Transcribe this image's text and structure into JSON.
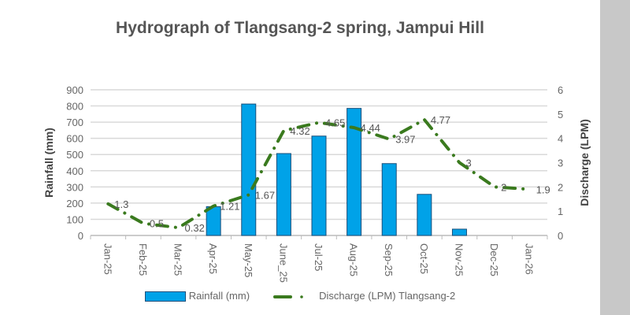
{
  "chart_data": {
    "type": "bar+line",
    "title": "Hydrograph of Tlangsang-2 spring, Jampui Hill",
    "categories": [
      "Jan-25",
      "Feb-25",
      "Mar-25",
      "Apr-25",
      "May-25",
      "June_25",
      "Jul-25",
      "Aug-25",
      "Sep-25",
      "Oct-25",
      "Nov-25",
      "Dec-25",
      "Jan-26"
    ],
    "y_left": {
      "label": "Rainfall (mm)",
      "range": [
        0,
        900
      ],
      "ticks": [
        "0",
        "100",
        "200",
        "300",
        "400",
        "500",
        "600",
        "700",
        "800",
        "900"
      ]
    },
    "y_right": {
      "label": "Discharge (LPM)",
      "range": [
        0,
        6
      ],
      "ticks": [
        "0",
        "1",
        "2",
        "3",
        "4",
        "5",
        "6"
      ]
    },
    "grid": true,
    "legend_position": "bottom",
    "series": [
      {
        "name": "Rainfall (mm)",
        "type": "bar",
        "axis": "left",
        "color": "#00a2e8",
        "values": [
          0,
          0,
          0,
          178,
          812,
          506,
          614,
          785,
          444,
          254,
          39,
          0,
          0
        ]
      },
      {
        "name": "Discharge (LPM) Tlangsang-2",
        "type": "line",
        "axis": "right",
        "color": "#3a7a1e",
        "style": "dash-dot",
        "values": [
          1.3,
          0.5,
          0.32,
          1.21,
          1.67,
          4.32,
          4.65,
          4.44,
          3.97,
          4.77,
          3,
          2,
          1.9
        ],
        "labels": [
          "1.3",
          "0.5",
          "0.32",
          "1.21",
          "1.67",
          "4.32",
          "4.65",
          "4.44",
          "3.97",
          "4.77",
          "3",
          "2",
          "1.9"
        ]
      }
    ]
  }
}
